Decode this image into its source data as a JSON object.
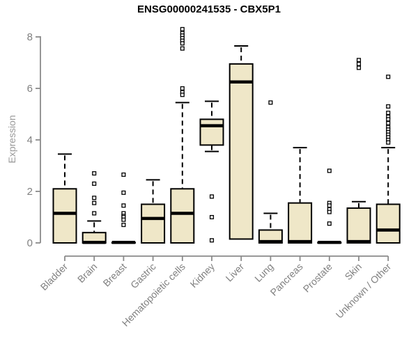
{
  "chart_data": {
    "type": "boxplot",
    "title": "ENSG00000241535 - CBX5P1",
    "ylabel": "Expression",
    "ylim": [
      0,
      8
    ],
    "yticks": [
      0,
      2,
      4,
      6,
      8
    ],
    "grid": false,
    "legend": "none",
    "categories": [
      "Bladder",
      "Brain",
      "Breast",
      "Gastric",
      "Hematopoietic cells",
      "Kidney",
      "Liver",
      "Lung",
      "Pancreas",
      "Prostate",
      "Skin",
      "Unknown / Other"
    ],
    "boxes": [
      {
        "category": "Bladder",
        "whisker_low": 0,
        "q1": 0,
        "median": 1.15,
        "q3": 2.1,
        "whisker_high": 3.45,
        "outliers": []
      },
      {
        "category": "Brain",
        "whisker_low": 0,
        "q1": 0,
        "median": 0.02,
        "q3": 0.4,
        "whisker_high": 0.85,
        "outliers": [
          2.7,
          2.3,
          1.75,
          1.55,
          1.15
        ]
      },
      {
        "category": "Breast",
        "whisker_low": 0,
        "q1": 0,
        "median": 0.02,
        "q3": 0.02,
        "whisker_high": 0.02,
        "outliers": [
          2.65,
          1.95,
          1.45,
          1.15,
          1.05,
          1.0,
          0.9,
          0.7
        ]
      },
      {
        "category": "Gastric",
        "whisker_low": 0,
        "q1": 0,
        "median": 0.95,
        "q3": 1.5,
        "whisker_high": 2.45,
        "outliers": []
      },
      {
        "category": "Hematopoietic cells",
        "whisker_low": 0,
        "q1": 0,
        "median": 1.15,
        "q3": 2.1,
        "whisker_high": 5.45,
        "outliers": [
          8.3,
          8.15,
          8.05,
          7.95,
          7.85,
          7.75,
          7.55,
          6.0,
          5.85,
          5.75
        ]
      },
      {
        "category": "Kidney",
        "whisker_low": 3.55,
        "q1": 3.8,
        "median": 4.55,
        "q3": 4.8,
        "whisker_high": 5.5,
        "outliers": [
          1.8,
          1.0,
          0.1
        ]
      },
      {
        "category": "Liver",
        "whisker_low": 0.15,
        "q1": 0.15,
        "median": 6.25,
        "q3": 6.95,
        "whisker_high": 7.65,
        "outliers": []
      },
      {
        "category": "Lung",
        "whisker_low": 0,
        "q1": 0,
        "median": 0.05,
        "q3": 0.5,
        "whisker_high": 1.15,
        "outliers": [
          5.45
        ]
      },
      {
        "category": "Pancreas",
        "whisker_low": 0,
        "q1": 0,
        "median": 0.05,
        "q3": 1.55,
        "whisker_high": 3.7,
        "outliers": []
      },
      {
        "category": "Prostate",
        "whisker_low": 0,
        "q1": 0,
        "median": 0.02,
        "q3": 0.02,
        "whisker_high": 0.02,
        "outliers": [
          2.8,
          1.55,
          1.45,
          1.3,
          1.2,
          0.75
        ]
      },
      {
        "category": "Skin",
        "whisker_low": 0,
        "q1": 0,
        "median": 0.05,
        "q3": 1.35,
        "whisker_high": 1.6,
        "outliers": [
          7.1,
          6.95,
          6.8
        ]
      },
      {
        "category": "Unknown / Other",
        "whisker_low": 0,
        "q1": 0,
        "median": 0.5,
        "q3": 1.5,
        "whisker_high": 3.7,
        "outliers": [
          6.45,
          5.3,
          5.05,
          4.9,
          4.8,
          4.65,
          4.5,
          4.4,
          4.3,
          4.2,
          4.1,
          4.0,
          3.9
        ]
      }
    ],
    "colors": {
      "box_fill": "#efe7c8",
      "box_border": "#000000",
      "median": "#000000",
      "axis": "#8a8a8a",
      "tick_label": "#808080",
      "y_label": "#9a9a9a",
      "title": "#000000",
      "background": "#ffffff"
    }
  }
}
